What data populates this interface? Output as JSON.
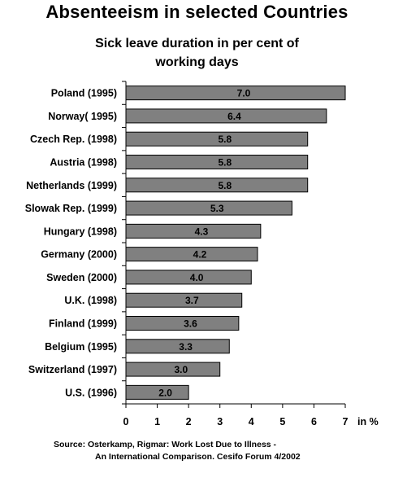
{
  "title": "Absenteeism in selected Countries",
  "subtitle_line1": "Sick leave duration in per cent of",
  "subtitle_line2": "working days",
  "source_line1": "Source: Osterkamp, Rigmar: Work Lost Due to Illness -",
  "source_line2": "An International Comparison. Cesifo Forum 4/2002",
  "colors": {
    "bar_fill": "#808080",
    "bar_stroke": "#000000",
    "axis": "#000000"
  },
  "chart_data": {
    "type": "bar",
    "orientation": "horizontal",
    "title": "Absenteeism in selected Countries",
    "subtitle": "Sick leave duration in per cent of working days",
    "xlabel": "in %",
    "ylabel": "",
    "xlim": [
      0,
      7
    ],
    "xticks": [
      0,
      1,
      2,
      3,
      4,
      5,
      6,
      7
    ],
    "grid": false,
    "categories": [
      "Poland (1995)",
      "Norway( 1995)",
      "Czech Rep. (1998)",
      "Austria (1998)",
      "Netherlands (1999)",
      "Slowak Rep. (1999)",
      "Hungary (1998)",
      "Germany (2000)",
      "Sweden (2000)",
      "U.K. (1998)",
      "Finland (1999)",
      "Belgium (1995)",
      "Switzerland (1997)",
      "U.S. (1996)"
    ],
    "values": [
      7.0,
      6.4,
      5.8,
      5.8,
      5.8,
      5.3,
      4.3,
      4.2,
      4.0,
      3.7,
      3.6,
      3.3,
      3.0,
      2.0
    ],
    "value_labels": [
      "7.0",
      "6.4",
      "5.8",
      "5.8",
      "5.8",
      "5.3",
      "4.3",
      "4.2",
      "4.0",
      "3.7",
      "3.6",
      "3.3",
      "3.0",
      "2.0"
    ]
  }
}
